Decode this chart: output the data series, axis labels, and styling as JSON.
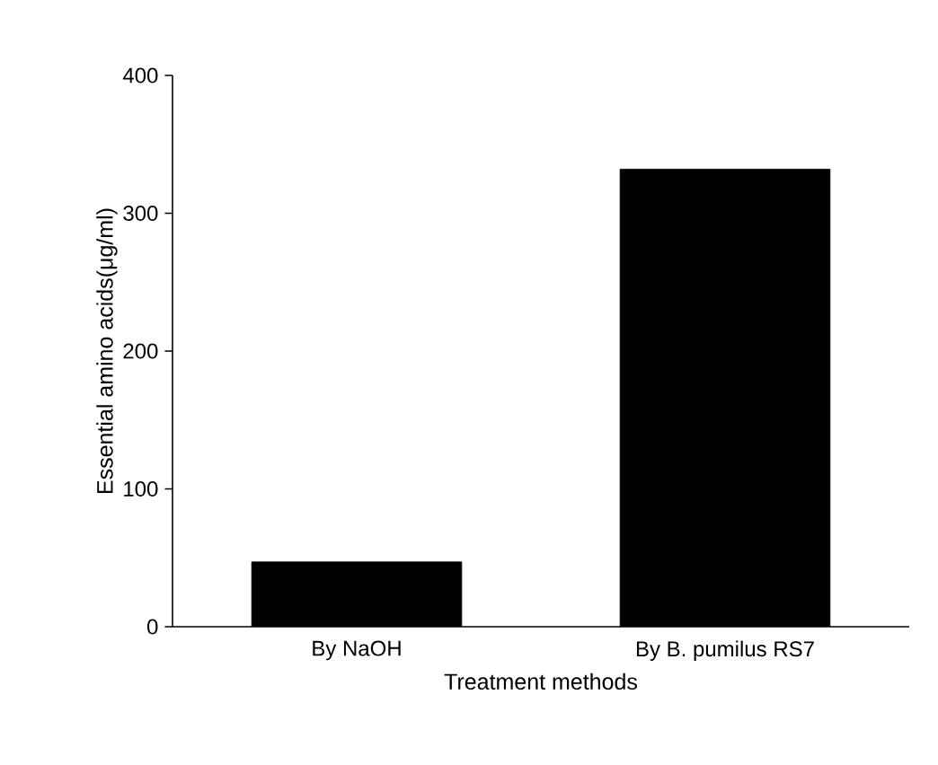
{
  "chart_data": {
    "type": "bar",
    "xlabel": "Treatment methods",
    "ylabel": "Essential amino acids(μg/ml)",
    "categories": [
      "By NaOH",
      "By B. pumilus RS7"
    ],
    "values": [
      47,
      332
    ],
    "color": "#000000",
    "ylim": [
      0,
      400
    ],
    "yticks": [
      0,
      100,
      200,
      300,
      400
    ],
    "grid": false
  }
}
